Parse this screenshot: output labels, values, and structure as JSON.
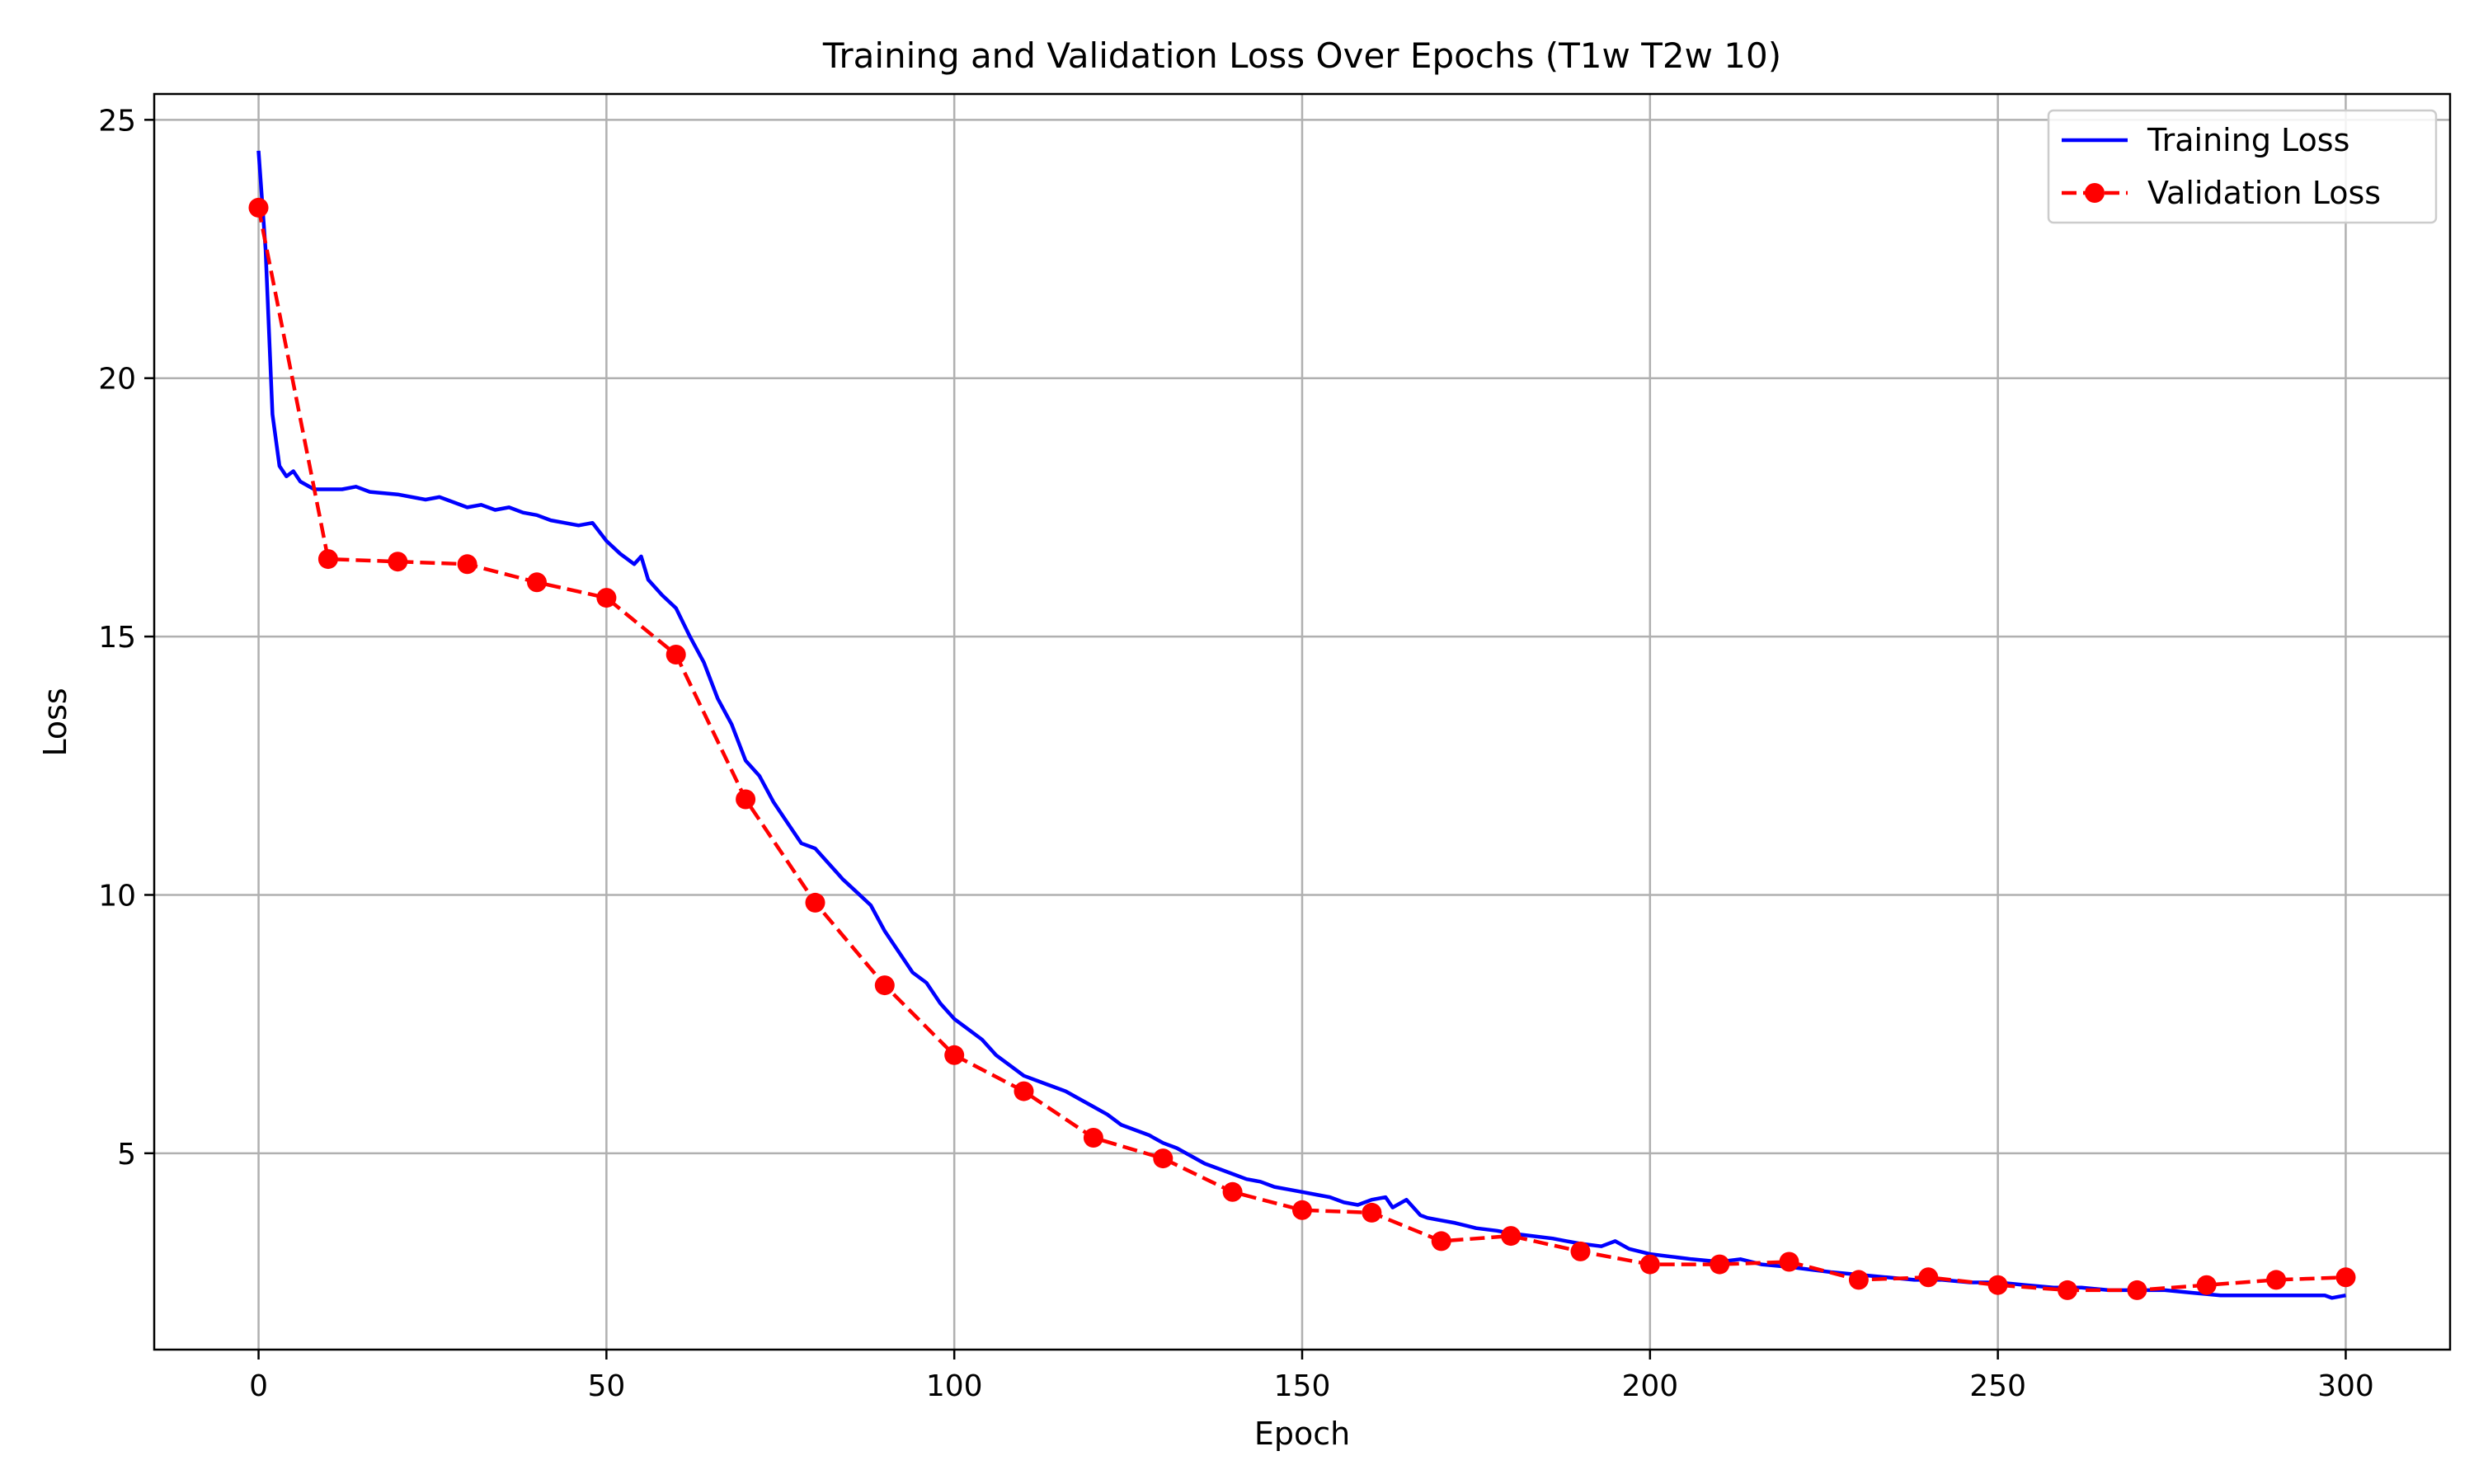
{
  "chart_data": {
    "type": "line",
    "title": "Training and Validation Loss Over Epochs (T1w T2w 10)",
    "xlabel": "Epoch",
    "ylabel": "Loss",
    "xlim": [
      -15,
      315
    ],
    "ylim": [
      1.2,
      25.5
    ],
    "xticks": [
      0,
      50,
      100,
      150,
      200,
      250,
      300
    ],
    "yticks": [
      5,
      10,
      15,
      20,
      25
    ],
    "grid": true,
    "legend_position": "top-right",
    "series": [
      {
        "name": "Training Loss",
        "color": "#0000ff",
        "style": "solid",
        "marker": "none",
        "points": [
          [
            0,
            24.4
          ],
          [
            1,
            22.5
          ],
          [
            2,
            19.3
          ],
          [
            3,
            18.3
          ],
          [
            4,
            18.1
          ],
          [
            5,
            18.2
          ],
          [
            6,
            18.0
          ],
          [
            8,
            17.85
          ],
          [
            10,
            17.85
          ],
          [
            12,
            17.85
          ],
          [
            14,
            17.9
          ],
          [
            16,
            17.8
          ],
          [
            20,
            17.75
          ],
          [
            24,
            17.65
          ],
          [
            26,
            17.7
          ],
          [
            28,
            17.6
          ],
          [
            30,
            17.5
          ],
          [
            32,
            17.55
          ],
          [
            34,
            17.45
          ],
          [
            36,
            17.5
          ],
          [
            38,
            17.4
          ],
          [
            40,
            17.35
          ],
          [
            42,
            17.25
          ],
          [
            44,
            17.2
          ],
          [
            46,
            17.15
          ],
          [
            48,
            17.2
          ],
          [
            50,
            16.85
          ],
          [
            52,
            16.6
          ],
          [
            53,
            16.5
          ],
          [
            54,
            16.4
          ],
          [
            55,
            16.55
          ],
          [
            56,
            16.1
          ],
          [
            58,
            15.8
          ],
          [
            60,
            15.55
          ],
          [
            62,
            15.0
          ],
          [
            64,
            14.5
          ],
          [
            66,
            13.8
          ],
          [
            68,
            13.3
          ],
          [
            70,
            12.6
          ],
          [
            72,
            12.3
          ],
          [
            74,
            11.8
          ],
          [
            76,
            11.4
          ],
          [
            78,
            11.0
          ],
          [
            80,
            10.9
          ],
          [
            82,
            10.6
          ],
          [
            84,
            10.3
          ],
          [
            86,
            10.05
          ],
          [
            88,
            9.8
          ],
          [
            90,
            9.3
          ],
          [
            92,
            8.9
          ],
          [
            94,
            8.5
          ],
          [
            96,
            8.3
          ],
          [
            98,
            7.9
          ],
          [
            100,
            7.6
          ],
          [
            102,
            7.4
          ],
          [
            104,
            7.2
          ],
          [
            106,
            6.9
          ],
          [
            108,
            6.7
          ],
          [
            110,
            6.5
          ],
          [
            112,
            6.4
          ],
          [
            114,
            6.3
          ],
          [
            116,
            6.2
          ],
          [
            118,
            6.05
          ],
          [
            120,
            5.9
          ],
          [
            122,
            5.75
          ],
          [
            124,
            5.55
          ],
          [
            126,
            5.45
          ],
          [
            128,
            5.35
          ],
          [
            130,
            5.2
          ],
          [
            132,
            5.1
          ],
          [
            134,
            4.95
          ],
          [
            136,
            4.8
          ],
          [
            138,
            4.7
          ],
          [
            140,
            4.6
          ],
          [
            142,
            4.5
          ],
          [
            144,
            4.45
          ],
          [
            146,
            4.35
          ],
          [
            148,
            4.3
          ],
          [
            150,
            4.25
          ],
          [
            152,
            4.2
          ],
          [
            154,
            4.15
          ],
          [
            156,
            4.05
          ],
          [
            158,
            4.0
          ],
          [
            160,
            4.1
          ],
          [
            162,
            4.15
          ],
          [
            163,
            3.95
          ],
          [
            165,
            4.1
          ],
          [
            167,
            3.8
          ],
          [
            168,
            3.75
          ],
          [
            170,
            3.7
          ],
          [
            172,
            3.65
          ],
          [
            175,
            3.55
          ],
          [
            178,
            3.5
          ],
          [
            180,
            3.45
          ],
          [
            183,
            3.4
          ],
          [
            186,
            3.35
          ],
          [
            188,
            3.3
          ],
          [
            190,
            3.25
          ],
          [
            193,
            3.2
          ],
          [
            195,
            3.3
          ],
          [
            197,
            3.15
          ],
          [
            200,
            3.05
          ],
          [
            203,
            3.0
          ],
          [
            206,
            2.95
          ],
          [
            210,
            2.9
          ],
          [
            213,
            2.95
          ],
          [
            216,
            2.85
          ],
          [
            220,
            2.8
          ],
          [
            223,
            2.75
          ],
          [
            226,
            2.7
          ],
          [
            230,
            2.65
          ],
          [
            234,
            2.6
          ],
          [
            238,
            2.55
          ],
          [
            242,
            2.55
          ],
          [
            246,
            2.5
          ],
          [
            250,
            2.5
          ],
          [
            254,
            2.45
          ],
          [
            258,
            2.4
          ],
          [
            262,
            2.4
          ],
          [
            266,
            2.35
          ],
          [
            270,
            2.35
          ],
          [
            274,
            2.35
          ],
          [
            278,
            2.3
          ],
          [
            282,
            2.25
          ],
          [
            286,
            2.25
          ],
          [
            290,
            2.25
          ],
          [
            294,
            2.25
          ],
          [
            297,
            2.25
          ],
          [
            298,
            2.2
          ],
          [
            300,
            2.25
          ]
        ]
      },
      {
        "name": "Validation Loss",
        "color": "#ff0000",
        "style": "dashed",
        "marker": "circle",
        "points": [
          [
            0,
            23.3
          ],
          [
            10,
            16.5
          ],
          [
            20,
            16.45
          ],
          [
            30,
            16.4
          ],
          [
            40,
            16.05
          ],
          [
            50,
            15.75
          ],
          [
            60,
            14.65
          ],
          [
            70,
            11.85
          ],
          [
            80,
            9.85
          ],
          [
            90,
            8.25
          ],
          [
            100,
            6.9
          ],
          [
            110,
            6.2
          ],
          [
            120,
            5.3
          ],
          [
            130,
            4.9
          ],
          [
            140,
            4.25
          ],
          [
            150,
            3.9
          ],
          [
            160,
            3.85
          ],
          [
            170,
            3.3
          ],
          [
            180,
            3.4
          ],
          [
            190,
            3.1
          ],
          [
            200,
            2.85
          ],
          [
            210,
            2.85
          ],
          [
            220,
            2.9
          ],
          [
            230,
            2.55
          ],
          [
            240,
            2.6
          ],
          [
            250,
            2.45
          ],
          [
            260,
            2.35
          ],
          [
            270,
            2.35
          ],
          [
            280,
            2.45
          ],
          [
            290,
            2.55
          ],
          [
            300,
            2.6
          ]
        ]
      }
    ]
  }
}
